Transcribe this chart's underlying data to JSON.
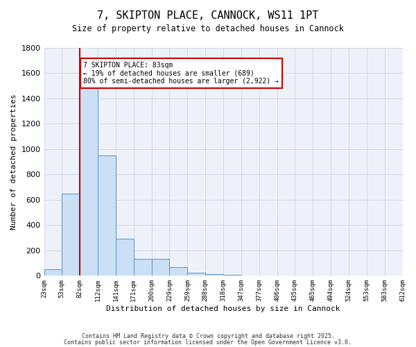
{
  "title_line1": "7, SKIPTON PLACE, CANNOCK, WS11 1PT",
  "title_line2": "Size of property relative to detached houses in Cannock",
  "xlabel": "Distribution of detached houses by size in Cannock",
  "ylabel": "Number of detached properties",
  "bin_labels": [
    "23sqm",
    "53sqm",
    "82sqm",
    "112sqm",
    "141sqm",
    "171sqm",
    "200sqm",
    "229sqm",
    "259sqm",
    "288sqm",
    "318sqm",
    "347sqm",
    "377sqm",
    "406sqm",
    "435sqm",
    "465sqm",
    "494sqm",
    "524sqm",
    "553sqm",
    "583sqm",
    "612sqm"
  ],
  "bar_heights": [
    50,
    650,
    1500,
    950,
    290,
    135,
    135,
    65,
    25,
    15,
    5,
    2,
    2,
    2,
    2,
    2,
    2,
    2,
    2,
    2
  ],
  "bar_color": "#cce0f5",
  "bar_edge_color": "#5b9bd5",
  "grid_color": "#d0d8e8",
  "bg_color": "#eef2f8",
  "marker_color": "#cc0000",
  "annotation_text": "7 SKIPTON PLACE: 83sqm\n← 19% of detached houses are smaller (689)\n80% of semi-detached houses are larger (2,922) →",
  "annotation_box_color": "#cc0000",
  "ylim": [
    0,
    1800
  ],
  "yticks": [
    0,
    200,
    400,
    600,
    800,
    1000,
    1200,
    1400,
    1600,
    1800
  ],
  "footnote1": "Contains HM Land Registry data © Crown copyright and database right 2025.",
  "footnote2": "Contains public sector information licensed under the Open Government Licence v3.0."
}
